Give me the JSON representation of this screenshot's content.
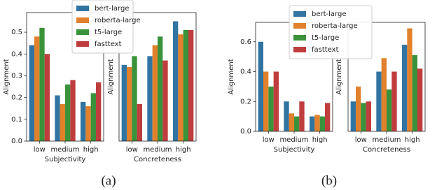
{
  "chart_data": [
    {
      "type": "bar",
      "categories": [
        "low",
        "medium",
        "high"
      ],
      "xlabel": "Subjectivity",
      "ylabel": "Alignment",
      "ylim": [
        0,
        0.59
      ],
      "yticks": [
        {
          "value": 0,
          "label": "0.0"
        },
        0.1,
        0.2,
        0.3,
        0.4,
        0.5
      ],
      "legend": "upper right",
      "series": [
        {
          "name": "bert-large",
          "color": "#3274a1",
          "values": [
            0.44,
            0.21,
            0.18
          ]
        },
        {
          "name": "roberta-large",
          "color": "#e1812c",
          "values": [
            0.48,
            0.17,
            0.16
          ]
        },
        {
          "name": "t5-large",
          "color": "#3a923a",
          "values": [
            0.52,
            0.26,
            0.22
          ]
        },
        {
          "name": "fasttext",
          "color": "#c03d3e",
          "values": [
            0.4,
            0.28,
            0.27
          ]
        }
      ]
    },
    {
      "type": "bar",
      "categories": [
        "low",
        "medium",
        "high"
      ],
      "xlabel": "Concreteness",
      "ylabel": "Alignment",
      "ylim": [
        0,
        0.59
      ],
      "series": [
        {
          "name": "bert-large",
          "color": "#3274a1",
          "values": [
            0.35,
            0.39,
            0.55
          ]
        },
        {
          "name": "roberta-large",
          "color": "#e1812c",
          "values": [
            0.34,
            0.44,
            0.49
          ]
        },
        {
          "name": "t5-large",
          "color": "#3a923a",
          "values": [
            0.39,
            0.48,
            0.51
          ]
        },
        {
          "name": "fasttext",
          "color": "#c03d3e",
          "values": [
            0.17,
            0.37,
            0.51
          ]
        }
      ]
    },
    {
      "type": "bar",
      "categories": [
        "low",
        "medium",
        "high"
      ],
      "xlabel": "Subjectivity",
      "ylabel": "Alignment",
      "ylim": [
        0,
        0.73
      ],
      "yticks": [
        {
          "value": 0,
          "label": "0.0"
        },
        0.2,
        0.4,
        0.6
      ],
      "legend": "upper right",
      "series": [
        {
          "name": "bert-large",
          "color": "#3274a1",
          "values": [
            0.6,
            0.2,
            0.1
          ]
        },
        {
          "name": "roberta-large",
          "color": "#e1812c",
          "values": [
            0.4,
            0.12,
            0.11
          ]
        },
        {
          "name": "t5-large",
          "color": "#3a923a",
          "values": [
            0.3,
            0.1,
            0.1
          ]
        },
        {
          "name": "fasttext",
          "color": "#c03d3e",
          "values": [
            0.4,
            0.2,
            0.19
          ]
        }
      ]
    },
    {
      "type": "bar",
      "categories": [
        "low",
        "medium",
        "high"
      ],
      "xlabel": "Concreteness",
      "ylabel": "Alignment",
      "ylim": [
        0,
        0.73
      ],
      "series": [
        {
          "name": "bert-large",
          "color": "#3274a1",
          "values": [
            0.2,
            0.4,
            0.58
          ]
        },
        {
          "name": "roberta-large",
          "color": "#e1812c",
          "values": [
            0.3,
            0.49,
            0.69
          ]
        },
        {
          "name": "t5-large",
          "color": "#3a923a",
          "values": [
            0.19,
            0.28,
            0.51
          ]
        },
        {
          "name": "fasttext",
          "color": "#c03d3e",
          "values": [
            0.2,
            0.4,
            0.42
          ]
        }
      ]
    }
  ],
  "captions": [
    "(a)",
    "(b)"
  ]
}
